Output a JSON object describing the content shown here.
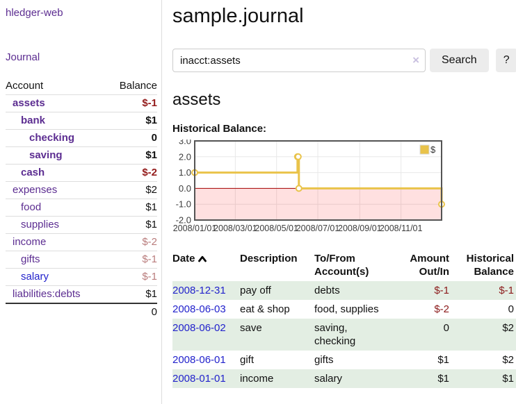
{
  "app": {
    "title": "hledger-web"
  },
  "colors": {
    "link_purple": "#5c2d91",
    "link_blue": "#2222cc",
    "negative_bold": "#941c1c",
    "negative_soft": "#b97c7c",
    "negative_table": "#8b1a1a",
    "row_shade_green": "#e3eee3",
    "chart_line_gold": "#e9c34a"
  },
  "sidebar": {
    "journal_link": "Journal",
    "accounts": {
      "col_account": "Account",
      "col_balance": "Balance",
      "rows": [
        {
          "name": "assets",
          "balance": "$-1",
          "indent": 0,
          "bold": true,
          "negative": true,
          "blue": false,
          "pre_total": false
        },
        {
          "name": "bank",
          "balance": "$1",
          "indent": 1,
          "bold": true,
          "negative": false,
          "blue": false,
          "pre_total": false
        },
        {
          "name": "checking",
          "balance": "0",
          "indent": 2,
          "bold": true,
          "negative": false,
          "blue": false,
          "pre_total": false
        },
        {
          "name": "saving",
          "balance": "$1",
          "indent": 2,
          "bold": true,
          "negative": false,
          "blue": false,
          "pre_total": false
        },
        {
          "name": "cash",
          "balance": "$-2",
          "indent": 1,
          "bold": true,
          "negative": true,
          "blue": false,
          "pre_total": false
        },
        {
          "name": "expenses",
          "balance": "$2",
          "indent": 0,
          "bold": false,
          "negative": false,
          "blue": false,
          "pre_total": false
        },
        {
          "name": "food",
          "balance": "$1",
          "indent": 1,
          "bold": false,
          "negative": false,
          "blue": false,
          "pre_total": false
        },
        {
          "name": "supplies",
          "balance": "$1",
          "indent": 1,
          "bold": false,
          "negative": false,
          "blue": false,
          "pre_total": false
        },
        {
          "name": "income",
          "balance": "$-2",
          "indent": 0,
          "bold": false,
          "negative": true,
          "blue": false,
          "pre_total": false
        },
        {
          "name": "gifts",
          "balance": "$-1",
          "indent": 1,
          "bold": false,
          "negative": true,
          "blue": false,
          "pre_total": false
        },
        {
          "name": "salary",
          "balance": "$-1",
          "indent": 1,
          "bold": false,
          "negative": true,
          "blue": true,
          "pre_total": false
        },
        {
          "name": "liabilities:debts",
          "balance": "$1",
          "indent": 0,
          "bold": false,
          "negative": false,
          "blue": false,
          "pre_total": true
        }
      ],
      "total": "0"
    }
  },
  "main": {
    "title": "sample.journal",
    "search": {
      "query": "inacct:assets",
      "clear_icon": "×",
      "search_button": "Search",
      "help_button": "?"
    },
    "account_heading": "assets",
    "chart_label": "Historical Balance:"
  },
  "chart_data": {
    "type": "line",
    "style": "steps",
    "title": "Historical Balance:",
    "series": [
      {
        "name": "$",
        "color": "#e9c34a",
        "points": [
          {
            "date": "2008-01-01",
            "x_day": 0,
            "y": 1
          },
          {
            "date": "2008-06-01",
            "x_day": 152,
            "y": 2
          },
          {
            "date": "2008-06-02",
            "x_day": 153,
            "y": 2
          },
          {
            "date": "2008-06-03",
            "x_day": 154,
            "y": 0
          },
          {
            "date": "2008-12-31",
            "x_day": 365,
            "y": -1
          }
        ]
      }
    ],
    "x_ticks": [
      {
        "day": 0,
        "label": "2008/01/01"
      },
      {
        "day": 60,
        "label": "2008/03/01"
      },
      {
        "day": 121,
        "label": "2008/05/01"
      },
      {
        "day": 182,
        "label": "2008/07/01"
      },
      {
        "day": 244,
        "label": "2008/09/01"
      },
      {
        "day": 305,
        "label": "2008/11/01"
      }
    ],
    "y_ticks": [
      {
        "v": 3,
        "label": "3.0"
      },
      {
        "v": 2,
        "label": "2.0"
      },
      {
        "v": 1,
        "label": "1.0"
      },
      {
        "v": 0,
        "label": "0.0"
      },
      {
        "v": -1,
        "label": "-1.0"
      },
      {
        "v": -2,
        "label": "-2.0"
      }
    ],
    "xlim": [
      0,
      365
    ],
    "ylim": [
      -2,
      3
    ],
    "grid": true,
    "legend": {
      "label": "$",
      "position": "top-right"
    },
    "negative_region_color": "rgba(255,0,0,0.12)",
    "zero_line_color": "#a40000"
  },
  "register": {
    "headers": {
      "date": "Date",
      "description": "Description",
      "accounts": "To/From Account(s)",
      "amount": "Amount Out/In",
      "balance": "Historical Balance"
    },
    "rows": [
      {
        "date": "2008-12-31",
        "description": "pay off",
        "accounts": "debts",
        "amount": "$-1",
        "amount_neg": true,
        "balance": "$-1",
        "balance_neg": true,
        "shaded": true
      },
      {
        "date": "2008-06-03",
        "description": "eat & shop",
        "accounts": "food, supplies",
        "amount": "$-2",
        "amount_neg": true,
        "balance": "0",
        "balance_neg": false,
        "shaded": false
      },
      {
        "date": "2008-06-02",
        "description": "save",
        "accounts": "saving, checking",
        "amount": "0",
        "amount_neg": false,
        "balance": "$2",
        "balance_neg": false,
        "shaded": true
      },
      {
        "date": "2008-06-01",
        "description": "gift",
        "accounts": "gifts",
        "amount": "$1",
        "amount_neg": false,
        "balance": "$2",
        "balance_neg": false,
        "shaded": false
      },
      {
        "date": "2008-01-01",
        "description": "income",
        "accounts": "salary",
        "amount": "$1",
        "amount_neg": false,
        "balance": "$1",
        "balance_neg": false,
        "shaded": true
      }
    ]
  }
}
